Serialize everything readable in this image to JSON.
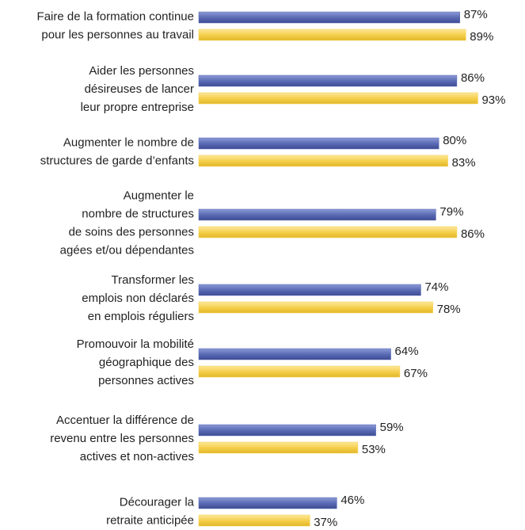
{
  "chart_data": {
    "type": "bar",
    "orientation": "horizontal",
    "categories": [
      [
        "Faire de la formation continue",
        "pour les personnes au travail"
      ],
      [
        "Aider les personnes",
        "désireuses de lancer",
        "leur propre entreprise"
      ],
      [
        "Augmenter le nombre de",
        "structures de garde d’enfants"
      ],
      [
        "Augmenter le",
        "nombre de structures",
        "de soins des personnes",
        "agées et/ou dépendantes"
      ],
      [
        "Transformer les",
        "emplois non déclarés",
        "en emplois réguliers"
      ],
      [
        "Promouvoir la mobilité",
        "géographique des",
        "personnes actives"
      ],
      [
        "Accentuer la différence de",
        "revenu entre les personnes",
        "actives et non-actives"
      ],
      [
        "Décourager la",
        "retraite anticipée"
      ]
    ],
    "series": [
      {
        "color": "#5b6cb6",
        "values": [
          87,
          86,
          80,
          79,
          74,
          64,
          59,
          46
        ],
        "value_labels": [
          "87%",
          "86%",
          "80%",
          "79%",
          "74%",
          "64%",
          "59%",
          "46%"
        ]
      },
      {
        "color": "#f6d04d",
        "values": [
          89,
          93,
          83,
          86,
          78,
          67,
          53,
          37
        ],
        "value_labels": [
          "89%",
          "93%",
          "83%",
          "86%",
          "78%",
          "67%",
          "53%",
          "37%"
        ]
      }
    ]
  }
}
